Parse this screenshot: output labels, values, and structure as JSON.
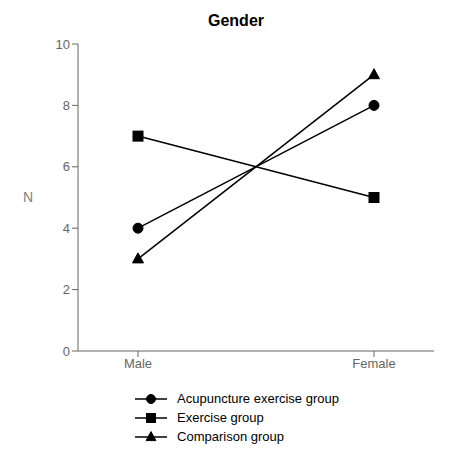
{
  "chart_data": {
    "type": "line",
    "title": "Gender",
    "categories": [
      "Male",
      "Female"
    ],
    "y_label": "N",
    "ylim": [
      0,
      10
    ],
    "yticks": [
      0,
      2,
      4,
      6,
      8,
      10
    ],
    "grid": false,
    "legend": "bottom",
    "series": [
      {
        "name": "Acupuncture exercise group",
        "values": [
          4,
          8
        ],
        "marker": "circle",
        "color": "#000000"
      },
      {
        "name": "Exercise group",
        "values": [
          7,
          5
        ],
        "marker": "square",
        "color": "#000000"
      },
      {
        "name": "Comparison group",
        "values": [
          3,
          9
        ],
        "marker": "triangle",
        "color": "#000000"
      }
    ]
  }
}
